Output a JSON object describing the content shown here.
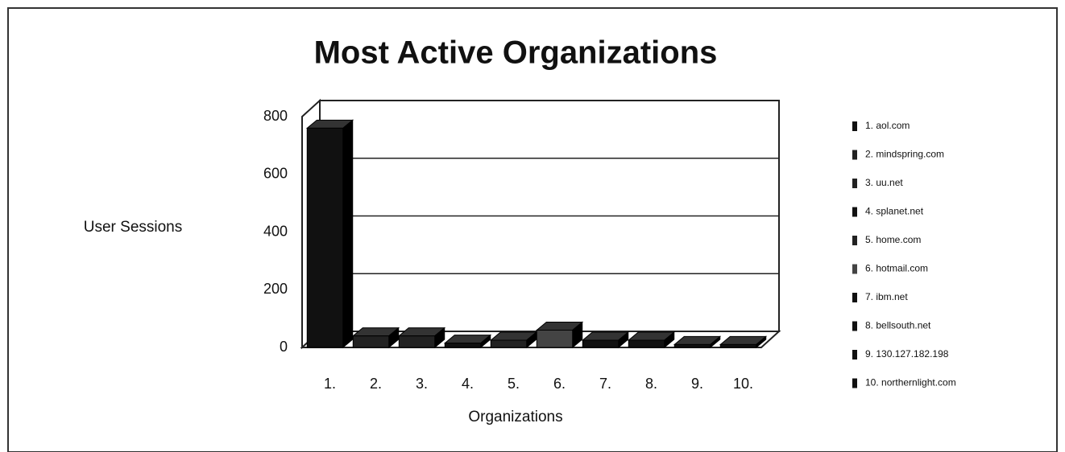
{
  "chart_data": {
    "type": "bar3d",
    "title": "Most Active Organizations",
    "ylabel": "User Sessions",
    "xlabel": "Organizations",
    "categories": [
      "1.",
      "2.",
      "3.",
      "4.",
      "5.",
      "6.",
      "7.",
      "8.",
      "9.",
      "10."
    ],
    "values": [
      760,
      40,
      40,
      15,
      25,
      60,
      25,
      25,
      10,
      10
    ],
    "colors": [
      "#111111",
      "#222222",
      "#222222",
      "#111111",
      "#222222",
      "#444444",
      "#111111",
      "#111111",
      "#111111",
      "#111111"
    ],
    "legend": [
      "1. aol.com",
      "2. mindspring.com",
      "3. uu.net",
      "4. splanet.net",
      "5. home.com",
      "6. hotmail.com",
      "7. ibm.net",
      "8. bellsouth.net",
      "9. 130.127.182.198",
      "10. northernlight.com"
    ],
    "legend_position": "right",
    "ylim": [
      0,
      800
    ],
    "yticks": [
      0,
      200,
      400,
      600,
      800
    ],
    "grid": true
  }
}
